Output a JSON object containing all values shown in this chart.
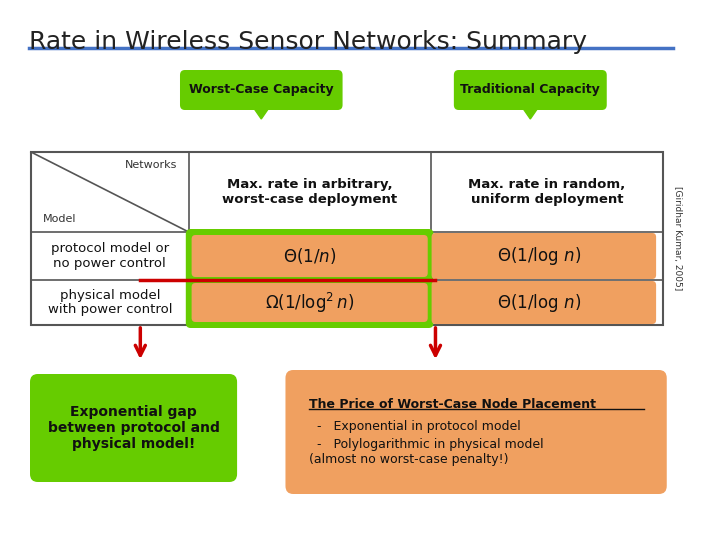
{
  "title": "Rate in Wireless Sensor Networks: Summary",
  "title_fontsize": 18,
  "title_color": "#222222",
  "background_color": "#ffffff",
  "header_line_color": "#4472c4",
  "green_color": "#66cc00",
  "orange_color": "#f0a060",
  "dark_red": "#cc0000",
  "table_border": "#555555",
  "worst_case_label": "Worst-Case Capacity",
  "traditional_label": "Traditional Capacity",
  "col1_header": "Max. rate in arbitrary,\nworst-case deployment",
  "col2_header": "Max. rate in random,\nuniform deployment",
  "row1_label": "protocol model or\nno power control",
  "row2_label": "physical model\nwith power control",
  "side_text": "[Giridhar Kumar, 2005]",
  "bottom_left_text": "Exponential gap\nbetween protocol and\nphysical model!",
  "bottom_right_title": "The Price of Worst-Case Node Placement",
  "bottom_right_bullet1": "Exponential in protocol model",
  "bottom_right_bullet2": "Polylogarithmic in physical model\n(almost no worst-case penalty!)",
  "networks_label": "Networks",
  "model_label": "Model"
}
